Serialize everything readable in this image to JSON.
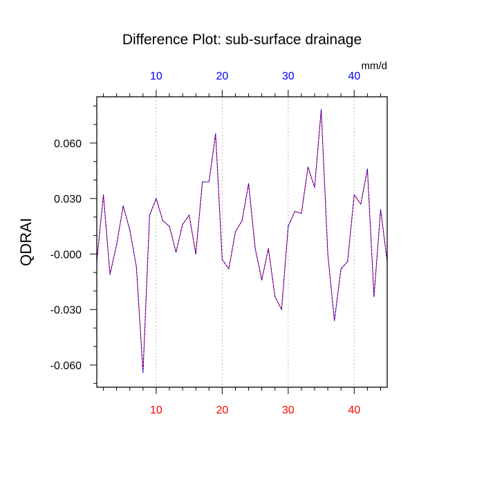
{
  "chart_data": {
    "type": "line",
    "title": "Difference Plot: sub-surface drainage",
    "ylabel": "QDRAI",
    "units": "mm/d",
    "xlim": [
      1,
      45
    ],
    "ylim": [
      -0.072,
      0.085
    ],
    "x_ticks": [
      10,
      20,
      30,
      40
    ],
    "y_ticks": [
      0.06,
      0.03,
      0.0,
      -0.03,
      -0.06
    ],
    "y_tick_labels": [
      "0.060",
      "0.030",
      "-0.000",
      "-0.030",
      "-0.060"
    ],
    "grid": "vertical dashed at x ticks",
    "series": [
      {
        "color": "#0000ff",
        "overlay_color": "#ff0000",
        "dash": "dashed",
        "x": [
          1,
          2,
          3,
          4,
          5,
          6,
          7,
          8,
          9,
          10,
          11,
          12,
          13,
          14,
          15,
          16,
          17,
          18,
          19,
          20,
          21,
          22,
          23,
          24,
          25,
          26,
          27,
          28,
          29,
          30,
          31,
          32,
          33,
          34,
          35,
          36,
          37,
          38,
          39,
          40,
          41,
          42,
          43,
          44,
          45
        ],
        "values": [
          -0.004,
          0.032,
          -0.011,
          0.005,
          0.026,
          0.013,
          -0.007,
          -0.064,
          0.021,
          0.03,
          0.018,
          0.015,
          0.001,
          0.016,
          0.021,
          0.0,
          0.039,
          0.039,
          0.065,
          -0.003,
          -0.008,
          0.012,
          0.018,
          0.038,
          0.003,
          -0.014,
          0.003,
          -0.023,
          -0.03,
          0.015,
          0.023,
          0.022,
          0.047,
          0.036,
          0.078,
          0.0,
          -0.036,
          -0.008,
          -0.004,
          0.032,
          0.027,
          0.046,
          -0.023,
          0.024,
          -0.004
        ]
      }
    ]
  },
  "colors": {
    "top_tick_labels": "#0000ff",
    "bottom_tick_labels": "#ff0000",
    "axis": "#000000",
    "grid": "#aaaaaa"
  }
}
